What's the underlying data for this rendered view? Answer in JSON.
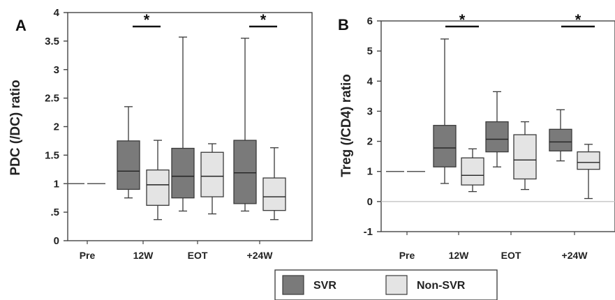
{
  "chart_data": [
    {
      "type": "box",
      "panel_label": "A",
      "title": "",
      "xlabel": "",
      "ylabel": "PDC (/DC) ratio",
      "ylim": [
        0,
        4
      ],
      "yticks": [
        0,
        0.5,
        1,
        1.5,
        2,
        2.5,
        3,
        3.5,
        4
      ],
      "ytick_labels": [
        "0",
        ".5",
        "1",
        "1.5",
        "2",
        "2.5",
        "3",
        "3.5",
        "4"
      ],
      "categories": [
        "Pre",
        "12W",
        "EOT",
        "+24W"
      ],
      "baseline": {
        "category": "Pre",
        "value": 1
      },
      "series": [
        {
          "name": "SVR",
          "color": "#7a7a7a",
          "boxes": [
            null,
            {
              "whisker_low": 0.75,
              "q1": 0.9,
              "median": 1.22,
              "q3": 1.75,
              "whisker_high": 2.35
            },
            {
              "whisker_low": 0.52,
              "q1": 0.75,
              "median": 1.13,
              "q3": 1.62,
              "whisker_high": 3.57
            },
            {
              "whisker_low": 0.52,
              "q1": 0.65,
              "median": 1.19,
              "q3": 1.76,
              "whisker_high": 3.55
            }
          ]
        },
        {
          "name": "Non-SVR",
          "color": "#e4e4e4",
          "boxes": [
            null,
            {
              "whisker_low": 0.37,
              "q1": 0.62,
              "median": 0.98,
              "q3": 1.24,
              "whisker_high": 1.76
            },
            {
              "whisker_low": 0.47,
              "q1": 0.77,
              "median": 1.13,
              "q3": 1.55,
              "whisker_high": 1.7
            },
            {
              "whisker_low": 0.37,
              "q1": 0.53,
              "median": 0.77,
              "q3": 1.1,
              "whisker_high": 1.63
            }
          ]
        }
      ],
      "significance": [
        {
          "category": "12W",
          "label": "*"
        },
        {
          "category": "+24W",
          "label": "*"
        }
      ],
      "grid": false
    },
    {
      "type": "box",
      "panel_label": "B",
      "title": "",
      "xlabel": "",
      "ylabel": "Treg (/CD4) ratio",
      "ylim": [
        -1,
        6
      ],
      "yticks": [
        -1,
        0,
        1,
        2,
        3,
        4,
        5,
        6
      ],
      "ytick_labels": [
        "-1",
        "0",
        "1",
        "2",
        "3",
        "4",
        "5",
        "6"
      ],
      "categories": [
        "Pre",
        "12W",
        "EOT",
        "+24W"
      ],
      "baseline": {
        "category": "Pre",
        "value": 1
      },
      "reference_line": 0,
      "series": [
        {
          "name": "SVR",
          "color": "#7a7a7a",
          "boxes": [
            null,
            {
              "whisker_low": 0.6,
              "q1": 1.15,
              "median": 1.78,
              "q3": 2.53,
              "whisker_high": 5.4
            },
            {
              "whisker_low": 1.15,
              "q1": 1.65,
              "median": 2.07,
              "q3": 2.65,
              "whisker_high": 3.65
            },
            {
              "whisker_low": 1.35,
              "q1": 1.68,
              "median": 1.98,
              "q3": 2.4,
              "whisker_high": 3.05
            }
          ]
        },
        {
          "name": "Non-SVR",
          "color": "#e4e4e4",
          "boxes": [
            null,
            {
              "whisker_low": 0.33,
              "q1": 0.55,
              "median": 0.87,
              "q3": 1.45,
              "whisker_high": 1.75
            },
            {
              "whisker_low": 0.4,
              "q1": 0.75,
              "median": 1.38,
              "q3": 2.22,
              "whisker_high": 2.65
            },
            {
              "whisker_low": 0.1,
              "q1": 1.07,
              "median": 1.3,
              "q3": 1.65,
              "whisker_high": 1.9
            }
          ]
        }
      ],
      "significance": [
        {
          "category": "12W",
          "label": "*"
        },
        {
          "category": "+24W",
          "label": "*"
        }
      ],
      "grid": false
    }
  ],
  "legend": {
    "placement": "bottom-center",
    "items": [
      {
        "label": "SVR",
        "color": "#7a7a7a"
      },
      {
        "label": "Non-SVR",
        "color": "#e4e4e4"
      }
    ]
  }
}
